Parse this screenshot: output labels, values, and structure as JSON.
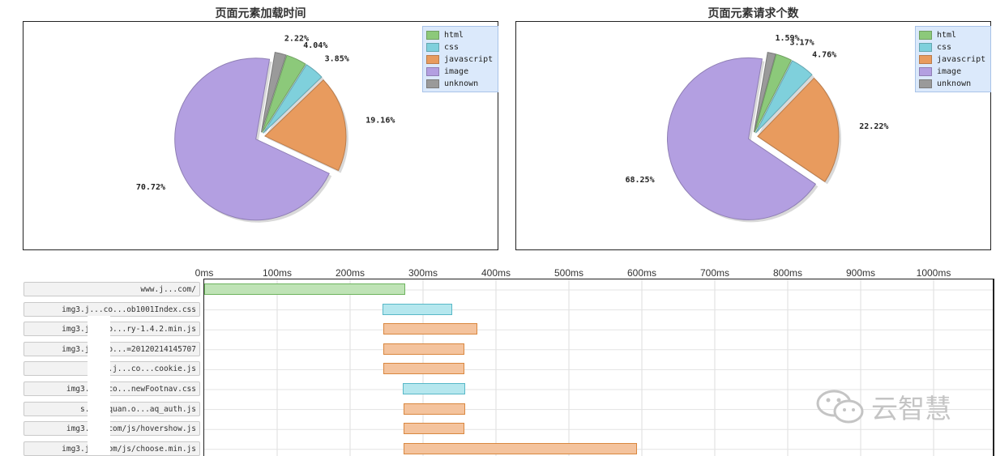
{
  "colors": {
    "html": "#8cc97a",
    "css": "#7fd0dc",
    "javascript": "#e89b5e",
    "image": "#b39fe1",
    "unknown": "#9a9a9a",
    "html_bar": "#bfe3b6",
    "css_bar": "#b5e7ee",
    "js_bar": "#f4c39d"
  },
  "chart_data": [
    {
      "type": "pie",
      "title": "页面元素加载时间",
      "legend": {
        "placement": "top-right",
        "entries": [
          "html",
          "css",
          "javascript",
          "image",
          "unknown"
        ]
      },
      "slices": [
        {
          "name": "unknown",
          "value": 2.22,
          "label": "2.22%"
        },
        {
          "name": "html",
          "value": 4.04,
          "label": "4.04%"
        },
        {
          "name": "css",
          "value": 3.85,
          "label": "3.85%"
        },
        {
          "name": "javascript",
          "value": 19.16,
          "label": "19.16%"
        },
        {
          "name": "image",
          "value": 70.72,
          "label": "70.72%"
        }
      ]
    },
    {
      "type": "pie",
      "title": "页面元素请求个数",
      "legend": {
        "placement": "top-right",
        "entries": [
          "html",
          "css",
          "javascript",
          "image",
          "unknown"
        ]
      },
      "slices": [
        {
          "name": "unknown",
          "value": 1.59,
          "label": "1.59%"
        },
        {
          "name": "html",
          "value": 3.17,
          "label": "3.17%"
        },
        {
          "name": "css",
          "value": 4.76,
          "label": "4.76%"
        },
        {
          "name": "javascript",
          "value": 22.22,
          "label": "22.22%"
        },
        {
          "name": "image",
          "value": 68.25,
          "label": "68.25%"
        }
      ]
    },
    {
      "type": "bar",
      "orientation": "horizontal-timeline",
      "x_ticks": [
        "0ms",
        "100ms",
        "200ms",
        "300ms",
        "400ms",
        "500ms",
        "600ms",
        "700ms",
        "800ms",
        "900ms",
        "1000ms"
      ],
      "xlim": [
        0,
        1080
      ],
      "grid": true,
      "rows": [
        {
          "label": "www.j...com/",
          "type": "html",
          "start": 0,
          "end": 275
        },
        {
          "label": "img3.j...co...ob1001Index.css",
          "type": "css",
          "start": 244,
          "end": 340
        },
        {
          "label": "img3.j...co...ry-1.4.2.min.js",
          "type": "javascript",
          "start": 245,
          "end": 374
        },
        {
          "label": "img3.j...co...=20120214145707",
          "type": "javascript",
          "start": 245,
          "end": 357
        },
        {
          "label": "img3.j...co...cookie.js",
          "type": "javascript",
          "start": 246,
          "end": 357
        },
        {
          "label": "img3.j...co...newFootnav.css",
          "type": "css",
          "start": 272,
          "end": 358
        },
        {
          "label": "s...anquan.o...aq_auth.js",
          "type": "javascript",
          "start": 273,
          "end": 358
        },
        {
          "label": "img3.j...com/js/hovershow.js",
          "type": "javascript",
          "start": 273,
          "end": 357
        },
        {
          "label": "img3.j...com/js/choose.min.js",
          "type": "javascript",
          "start": 273,
          "end": 593
        }
      ]
    }
  ],
  "watermark": {
    "text": "云智慧"
  }
}
